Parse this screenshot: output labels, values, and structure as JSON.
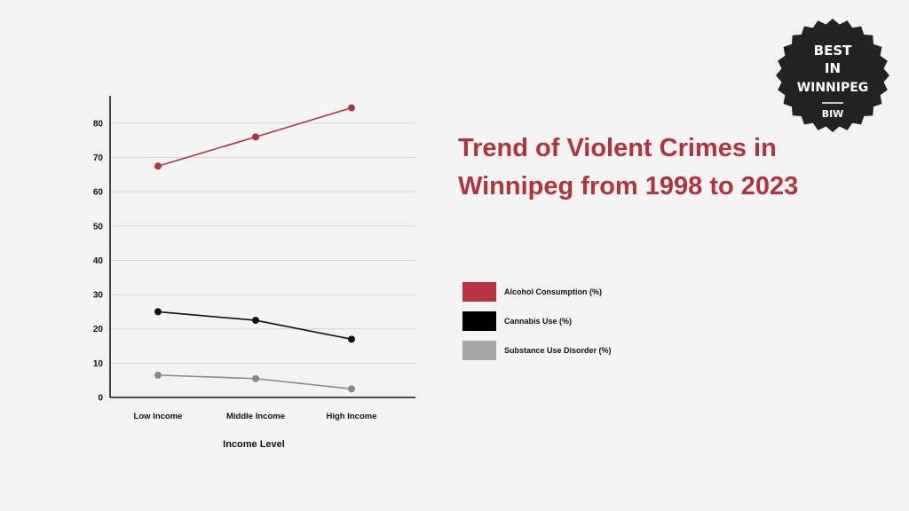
{
  "chart_data": {
    "type": "line",
    "title": "Trend of Violent Crimes in Winnipeg from 1998 to 2023",
    "xlabel": "Income Level",
    "ylabel": "",
    "categories": [
      "Low Income",
      "Middle Income",
      "High Income"
    ],
    "ylim": [
      0,
      88
    ],
    "yticks": [
      0,
      10,
      20,
      30,
      40,
      50,
      60,
      70,
      80
    ],
    "grid": true,
    "legend_position": "right",
    "series": [
      {
        "name": "Alcohol Consumption (%)",
        "values": [
          67.5,
          76,
          84.5
        ],
        "color": "#b0343f"
      },
      {
        "name": "Cannabis Use (%)",
        "values": [
          25,
          22.5,
          17
        ],
        "color": "#111111"
      },
      {
        "name": "Substance Use Disorder (%)",
        "values": [
          6.5,
          5.5,
          2.5
        ],
        "color": "#8a8a8a"
      }
    ]
  },
  "legend_swatch_colors": [
    "#b83440",
    "#000000",
    "#a6a6a6"
  ],
  "badge": {
    "line1": "BEST",
    "line2": "IN",
    "line3": "WINNIPEG",
    "line4": "BIW",
    "color": "#222222"
  }
}
